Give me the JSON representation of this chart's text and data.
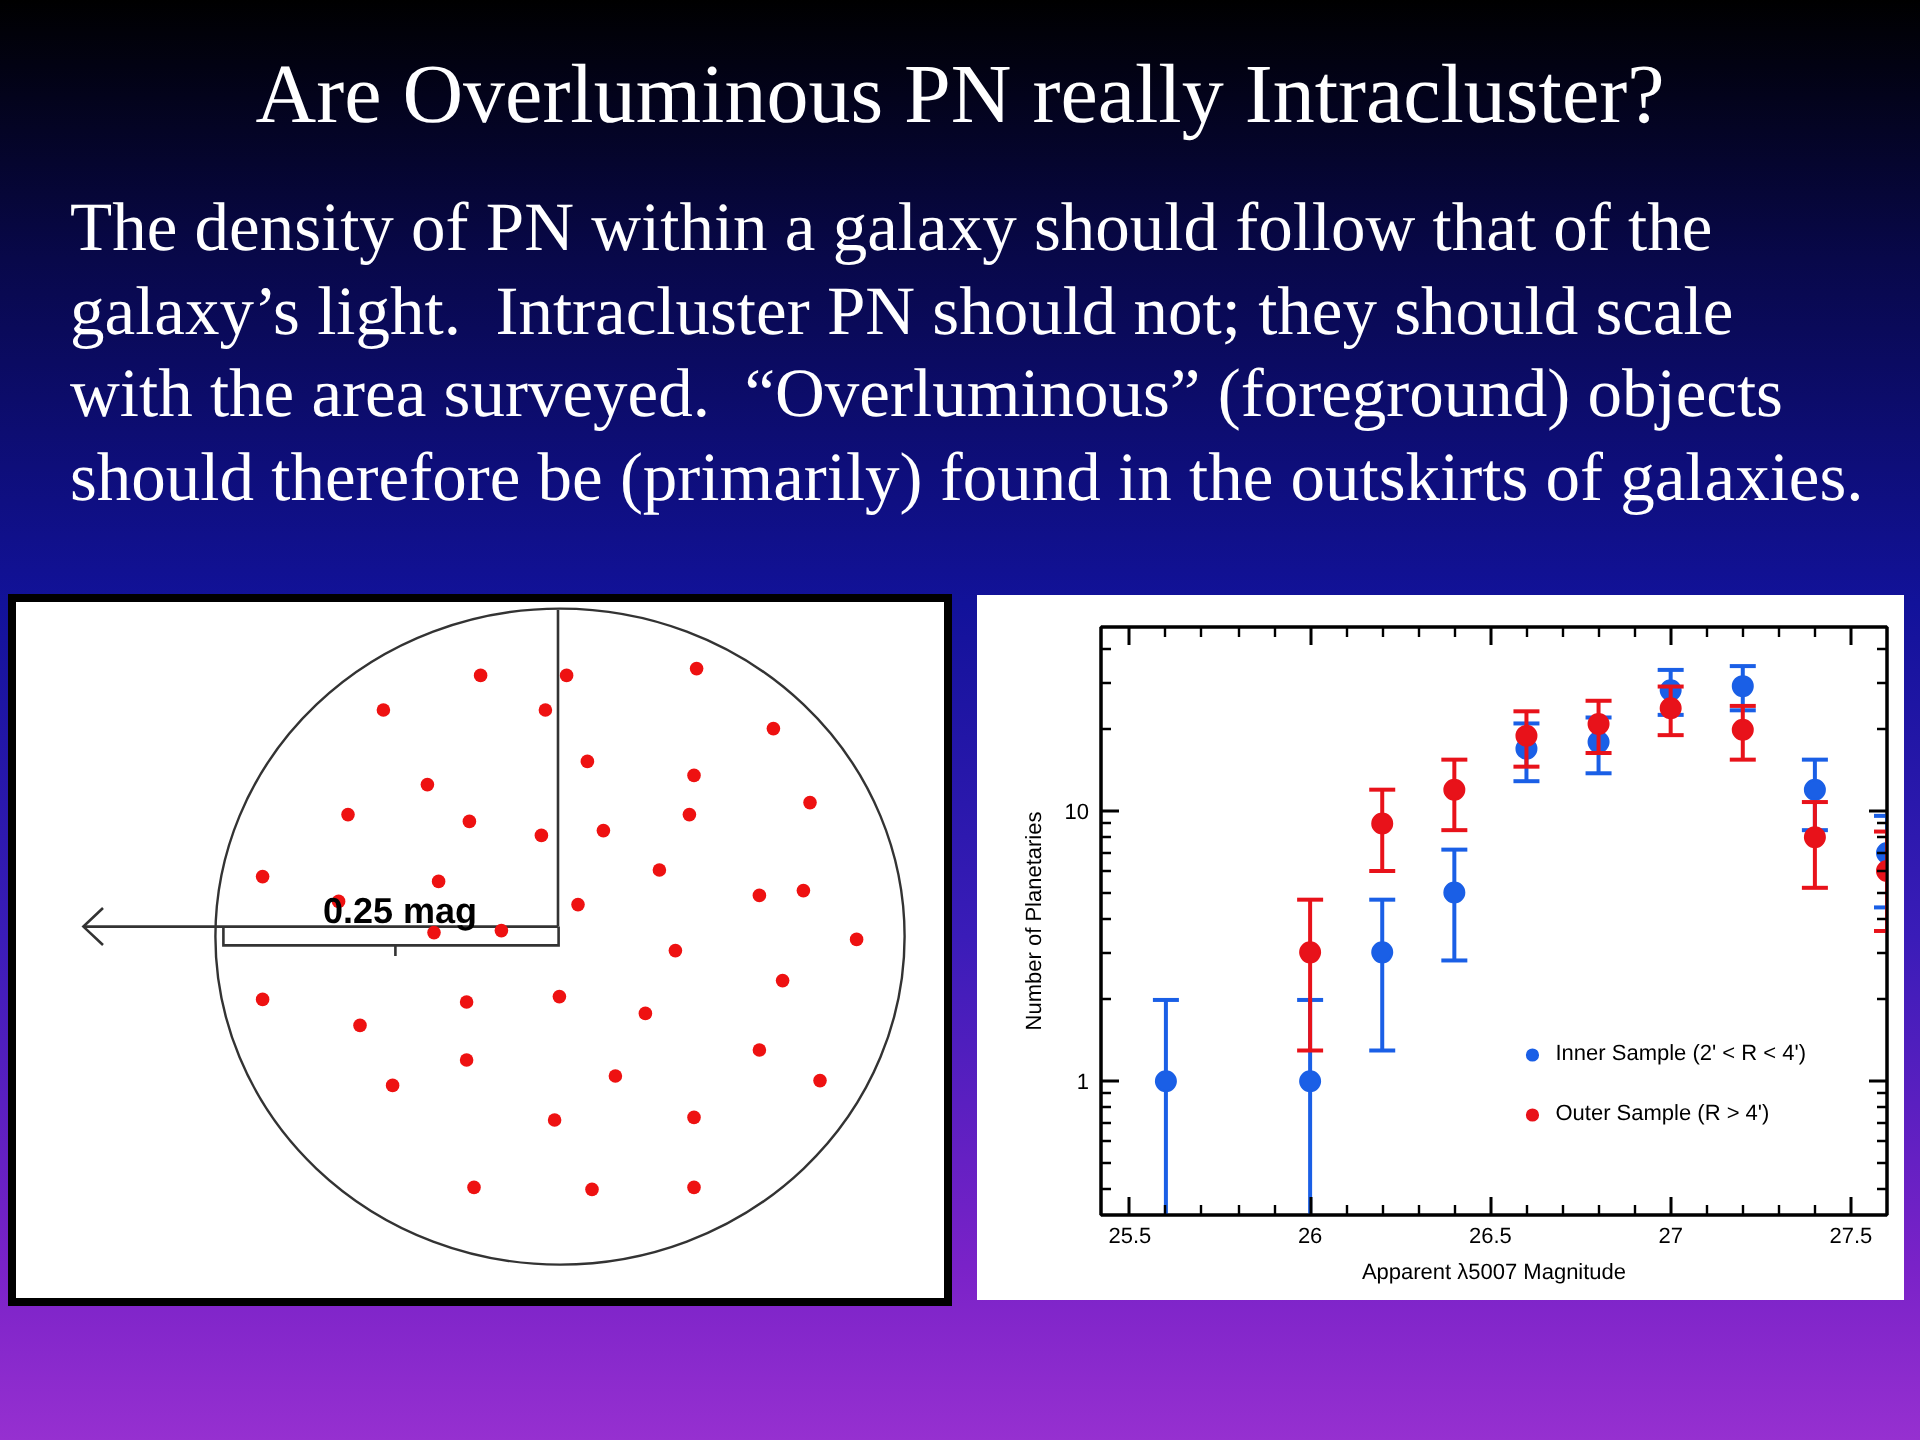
{
  "chart_data": [
    {
      "type": "other",
      "title": "Are Overluminous PN really Intracluster?",
      "subtitle": "The density of PN within a galaxy should follow that of the\ngalaxy’s light.  Intracluster PN should not; they should scale\nwith the area surveyed.  “Overluminous” (foreground) objects\nshould therefore be (primarily) found in the outskirts of galaxies."
    },
    {
      "type": "other",
      "annotations": [
        "0.25 mag"
      ]
    },
    {
      "type": "scatter",
      "xlabel": "Apparent λ5007 Magnitude",
      "ylabel": "Number of Planetaries",
      "log": "y",
      "marker": "circle",
      "legend": "bottom right",
      "xlim": [
        25.42,
        27.6
      ],
      "ylim": [
        0.32,
        48
      ],
      "xticks": [
        25.5,
        {
          "value": 25.6,
          "label": null
        },
        {
          "value": 25.7,
          "label": null
        },
        {
          "value": 25.8,
          "label": null
        },
        {
          "value": 25.9,
          "label": null
        },
        26,
        {
          "value": 26.1,
          "label": null
        },
        {
          "value": 26.2,
          "label": null
        },
        {
          "value": 26.3,
          "label": null
        },
        {
          "value": 26.4,
          "label": null
        },
        26.5,
        {
          "value": 26.6,
          "label": null
        },
        {
          "value": 26.7,
          "label": null
        },
        {
          "value": 26.8,
          "label": null
        },
        {
          "value": 26.9,
          "label": null
        },
        27,
        {
          "value": 27.1,
          "label": null
        },
        {
          "value": 27.2,
          "label": null
        },
        {
          "value": 27.3,
          "label": null
        },
        {
          "value": 27.4,
          "label": null
        },
        27.5
      ],
      "yticks": [
        {
          "value": 0.4,
          "label": null
        },
        {
          "value": 0.5,
          "label": null
        },
        {
          "value": 0.6,
          "label": null
        },
        {
          "value": 0.7,
          "label": null
        },
        {
          "value": 0.8,
          "label": null
        },
        {
          "value": 0.9,
          "label": null
        },
        1,
        {
          "value": 2,
          "label": null
        },
        {
          "value": 3,
          "label": null
        },
        {
          "value": 4,
          "label": null
        },
        {
          "value": 5,
          "label": null
        },
        {
          "value": 6,
          "label": null
        },
        {
          "value": 7,
          "label": null
        },
        {
          "value": 8,
          "label": null
        },
        {
          "value": 9,
          "label": null
        },
        10,
        {
          "value": 20,
          "label": null
        },
        {
          "value": 30,
          "label": null
        },
        {
          "value": 40,
          "label": null
        }
      ],
      "series": [
        {
          "name": "Inner Sample (2' < R < 4')",
          "color": "#1a5fe6",
          "x": [
            25.6,
            26.0,
            26.2,
            26.4,
            26.6,
            26.8,
            27.0,
            27.2,
            27.4,
            27.6
          ],
          "values": [
            1,
            1,
            3,
            5,
            17,
            18,
            28,
            29,
            12,
            7
          ],
          "errors": [
            [
              0.32,
              2
            ],
            [
              0.32,
              2
            ],
            1.7,
            2.2,
            4.1,
            4.2,
            5.3,
            5.4,
            3.5,
            2.6
          ]
        },
        {
          "name": "Outer Sample (R > 4')",
          "color": "#e8121a",
          "x": [
            26.0,
            26.2,
            26.4,
            26.6,
            26.8,
            27.0,
            27.2,
            27.4,
            27.6
          ],
          "values": [
            3,
            9,
            12,
            19,
            21,
            24,
            20,
            8,
            6
          ],
          "errors": [
            1.7,
            3,
            3.5,
            4.4,
            4.6,
            4.9,
            4.5,
            2.8,
            2.4
          ]
        }
      ]
    }
  ]
}
